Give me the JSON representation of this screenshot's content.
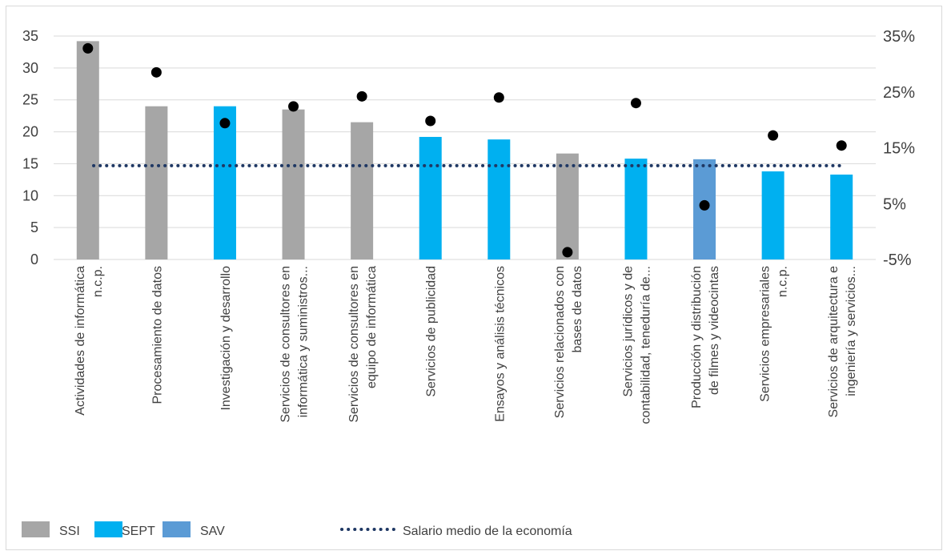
{
  "chart_data": {
    "type": "bar",
    "categories": [
      [
        "Actividades de informática",
        "n.c.p."
      ],
      [
        "Procesamiento de datos"
      ],
      [
        "Investigación y desarrollo"
      ],
      [
        "Servicios de consultores en",
        "informática y suministros..."
      ],
      [
        "Servicios de consultores en",
        "equipo de informática"
      ],
      [
        "Servicios de publicidad"
      ],
      [
        "Ensayos y análisis técnicos"
      ],
      [
        "Servicios relacionados con",
        "bases de datos"
      ],
      [
        "Servicios jurídicos y de",
        "contabilidad, teneduría de..."
      ],
      [
        "Producción y distribución",
        "de filmes y videocintas"
      ],
      [
        "Servicios empresariales",
        "n.c.p."
      ],
      [
        "Servicios de arquitectura e",
        "ingeniería y servicios..."
      ]
    ],
    "bar_values": [
      34.2,
      24.0,
      24.0,
      23.5,
      21.5,
      19.2,
      18.8,
      16.6,
      15.8,
      15.7,
      13.8,
      13.3
    ],
    "bar_groups": [
      "SSI",
      "SSI",
      "SEPT",
      "SSI",
      "SSI",
      "SEPT",
      "SEPT",
      "SSI",
      "SEPT",
      "SAV",
      "SEPT",
      "SEPT"
    ],
    "dot_values_pct": [
      32.8,
      28.5,
      19.4,
      22.4,
      24.2,
      19.8,
      24.0,
      -3.7,
      23.0,
      4.7,
      17.2,
      15.4
    ],
    "reference_line": {
      "value": 14.7,
      "label": "Salario medio de la economía",
      "color": "#1f3864"
    },
    "left_axis": {
      "min": 0,
      "max": 35,
      "ticks": [
        "0",
        "5",
        "10",
        "15",
        "20",
        "25",
        "30",
        "35"
      ]
    },
    "right_axis": {
      "min": -5,
      "max": 35,
      "ticks": [
        "-5%",
        "5%",
        "15%",
        "25%",
        "35%"
      ]
    },
    "legend": [
      {
        "key": "SSI",
        "label": "SSI",
        "color": "#a6a6a6"
      },
      {
        "key": "SEPT",
        "label": "SEPT",
        "color": "#00b0f0"
      },
      {
        "key": "SAV",
        "label": "SAV",
        "color": "#5b9bd5"
      }
    ],
    "legend_position": "bottom",
    "grid": true,
    "dot_color": "#000000",
    "gridline_color": "#d9d9d9"
  }
}
